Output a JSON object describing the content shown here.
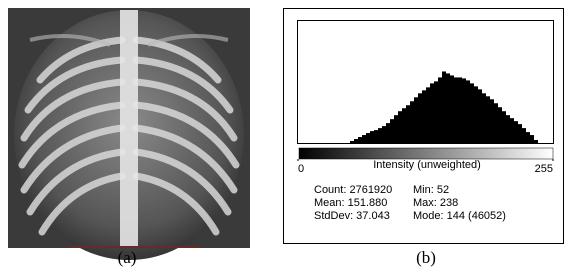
{
  "figure": {
    "panels": [
      {
        "caption": "(a)"
      },
      {
        "caption": "(b)",
        "stats": [
          [
            "Count: 2761920",
            "Min: 52"
          ],
          [
            "Mean: 151.880",
            "Max: 238"
          ],
          [
            "StdDev: 37.043",
            "Mode: 144 (46052)"
          ]
        ]
      }
    ]
  },
  "chart_data": {
    "type": "histogram",
    "xlabel": "Intensity (unweighted)",
    "color": "#000000",
    "bins": [
      52,
      56,
      60,
      64,
      68,
      72,
      76,
      80,
      84,
      88,
      92,
      96,
      100,
      104,
      108,
      112,
      116,
      120,
      124,
      128,
      132,
      136,
      140,
      144,
      148,
      152,
      156,
      160,
      164,
      168,
      172,
      176,
      180,
      184,
      188,
      192,
      196,
      200,
      204,
      208,
      212,
      216,
      220,
      224,
      228,
      232,
      236,
      240
    ],
    "values": [
      3000,
      6000,
      9000,
      12000,
      15000,
      18000,
      19500,
      22500,
      25500,
      30000,
      36000,
      42000,
      48000,
      52500,
      57000,
      63000,
      69000,
      75000,
      79500,
      84000,
      90000,
      93000,
      99000,
      108000,
      105000,
      102000,
      99000,
      99000,
      97500,
      94500,
      90000,
      85500,
      81000,
      75000,
      70500,
      66000,
      60000,
      54000,
      48000,
      42000,
      37500,
      33000,
      28500,
      22500,
      16500,
      12000,
      4500
    ],
    "xlim": [
      0,
      255
    ],
    "xticks": [
      0,
      255
    ],
    "ylim": [
      0,
      184208
    ]
  }
}
